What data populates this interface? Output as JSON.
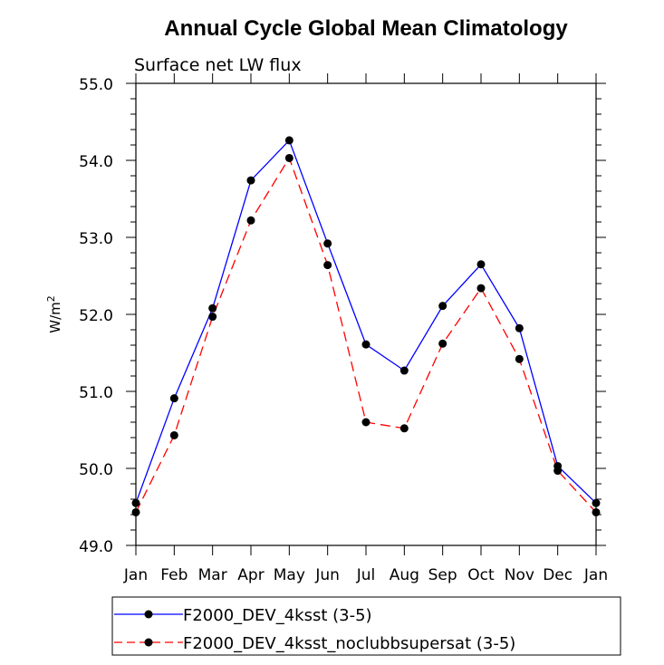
{
  "chart_data": {
    "type": "line",
    "title": "Annual Cycle Global Mean Climatology",
    "subtitle": "Surface net LW flux",
    "xlabel": "",
    "ylabel": "W/m",
    "ylabel_superscript": "2",
    "categories": [
      "Jan",
      "Feb",
      "Mar",
      "Apr",
      "May",
      "Jun",
      "Jul",
      "Aug",
      "Sep",
      "Oct",
      "Nov",
      "Dec",
      "Jan"
    ],
    "ylim": [
      49.0,
      55.0
    ],
    "yticks": [
      {
        "value": 49.0,
        "label": "49.0"
      },
      {
        "value": 50.0,
        "label": "50.0"
      },
      {
        "value": 51.0,
        "label": "51.0"
      },
      {
        "value": 52.0,
        "label": "52.0"
      },
      {
        "value": 53.0,
        "label": "53.0"
      },
      {
        "value": 54.0,
        "label": "54.0"
      },
      {
        "value": 55.0,
        "label": "55.0"
      }
    ],
    "series": [
      {
        "name": "F2000_DEV_4ksst (3-5)",
        "color": "#0000ff",
        "style": "solid",
        "values": [
          49.55,
          50.91,
          52.08,
          53.74,
          54.26,
          52.92,
          51.61,
          51.27,
          52.11,
          52.65,
          51.82,
          50.03,
          49.55
        ]
      },
      {
        "name": "F2000_DEV_4ksst_noclubbsupersat (3-5)",
        "color": "#ff0000",
        "style": "dashed",
        "values": [
          49.43,
          50.43,
          51.97,
          53.22,
          54.03,
          52.64,
          50.6,
          50.52,
          51.62,
          52.34,
          51.42,
          49.97,
          49.43
        ]
      }
    ],
    "legend_position": "bottom"
  }
}
